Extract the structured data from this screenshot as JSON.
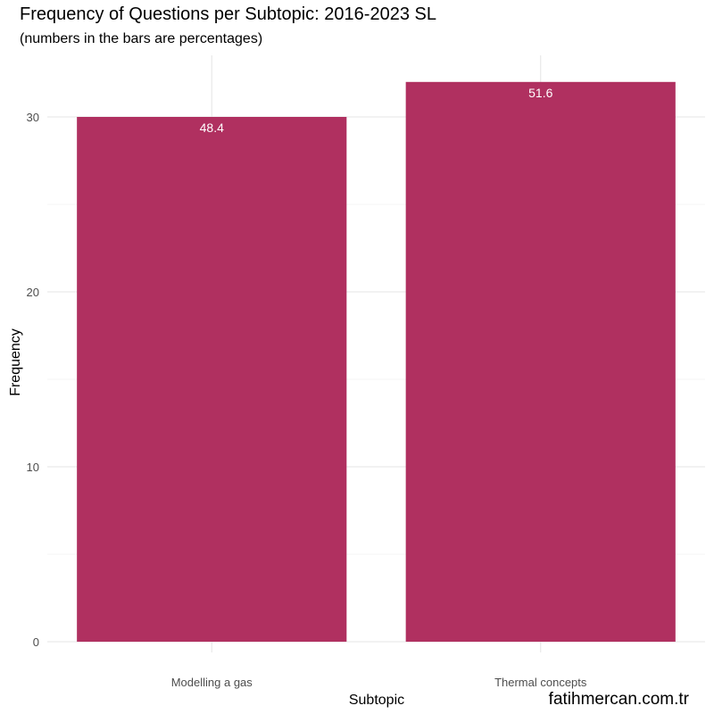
{
  "chart_data": {
    "type": "bar",
    "title": "Frequency of Questions per Subtopic: 2016-2023 SL",
    "subtitle": "(numbers in the bars are percentages)",
    "xlabel": "Subtopic",
    "ylabel": "Frequency",
    "categories": [
      "Modelling a gas",
      "Thermal concepts"
    ],
    "values": [
      30,
      32
    ],
    "bar_labels": [
      "48.4",
      "51.6"
    ],
    "yticks": [
      0,
      10,
      20,
      30
    ],
    "ylim": [
      0,
      32
    ],
    "bar_color": "#B03060",
    "grid": true,
    "legend": "none"
  },
  "watermark": "fatihmercan.com.tr"
}
